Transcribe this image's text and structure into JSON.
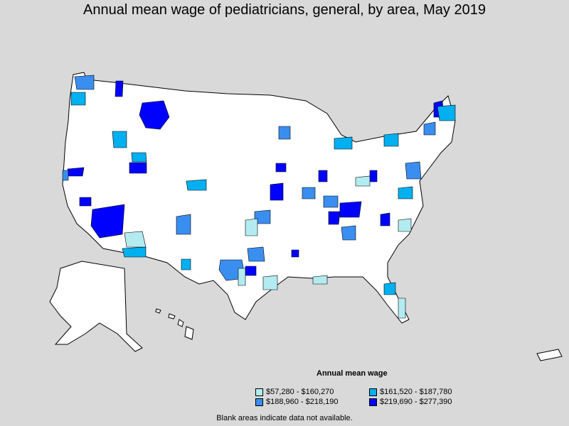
{
  "title": "Annual mean wage of pediatricians, general, by area, May 2019",
  "legend": {
    "title": "Annual mean wage",
    "items": [
      {
        "label": "$57,280 - $160,270",
        "color": "#b3ecf0"
      },
      {
        "label": "$161,520 - $187,780",
        "color": "#00b0f0"
      },
      {
        "label": "$188,960 - $218,190",
        "color": "#3a8ef0"
      },
      {
        "label": "$219,690 - $277,390",
        "color": "#0000ff"
      }
    ]
  },
  "footnote": "Blank areas indicate data not available.",
  "colors": {
    "background": "#d9d9d9",
    "land": "#ffffff",
    "border": "#000000"
  }
}
